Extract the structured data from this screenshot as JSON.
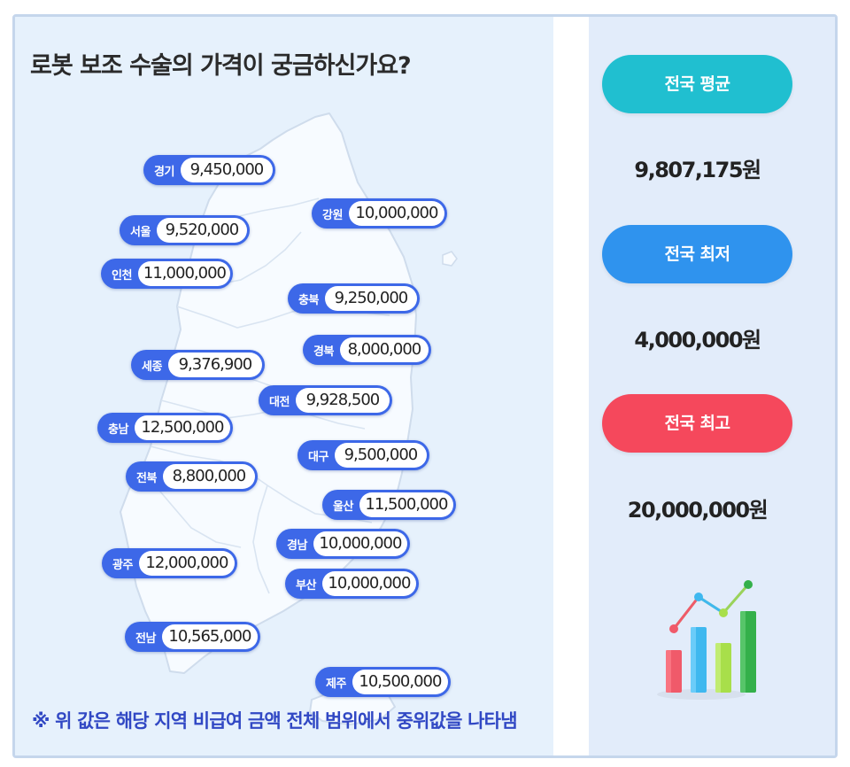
{
  "title": "로봇 보조 수술의 가격이 궁금하신가요?",
  "regions": [
    {
      "name": "경기",
      "value": "9,450,000"
    },
    {
      "name": "강원",
      "value": "10,000,000"
    },
    {
      "name": "서울",
      "value": "9,520,000"
    },
    {
      "name": "인천",
      "value": "11,000,000"
    },
    {
      "name": "충북",
      "value": "9,250,000"
    },
    {
      "name": "경북",
      "value": "8,000,000"
    },
    {
      "name": "세종",
      "value": "9,376,900"
    },
    {
      "name": "대전",
      "value": "9,928,500"
    },
    {
      "name": "충남",
      "value": "12,500,000"
    },
    {
      "name": "대구",
      "value": "9,500,000"
    },
    {
      "name": "전북",
      "value": "8,800,000"
    },
    {
      "name": "울산",
      "value": "11,500,000"
    },
    {
      "name": "경남",
      "value": "10,000,000"
    },
    {
      "name": "광주",
      "value": "12,000,000"
    },
    {
      "name": "부산",
      "value": "10,000,000"
    },
    {
      "name": "전남",
      "value": "10,565,000"
    },
    {
      "name": "제주",
      "value": "10,500,000"
    }
  ],
  "stats": {
    "average": {
      "label": "전국 평균",
      "value": "9,807,175원",
      "color": "#20bfd0"
    },
    "lowest": {
      "label": "전국 최저",
      "value": "4,000,000원",
      "color": "#2f93ee"
    },
    "highest": {
      "label": "전국 최고",
      "value": "20,000,000원",
      "color": "#f5485c"
    }
  },
  "footnote": "※ 위 값은 해당 지역 비급여 금액 전체 범위에서 중위값을 나타냄",
  "colors": {
    "pill": "#3d68e8",
    "map_fill": "#f7fbff",
    "map_stroke": "#cfdcec",
    "footnote": "#3148c4"
  },
  "icons": {
    "chart": "bar-chart-rising-icon"
  }
}
